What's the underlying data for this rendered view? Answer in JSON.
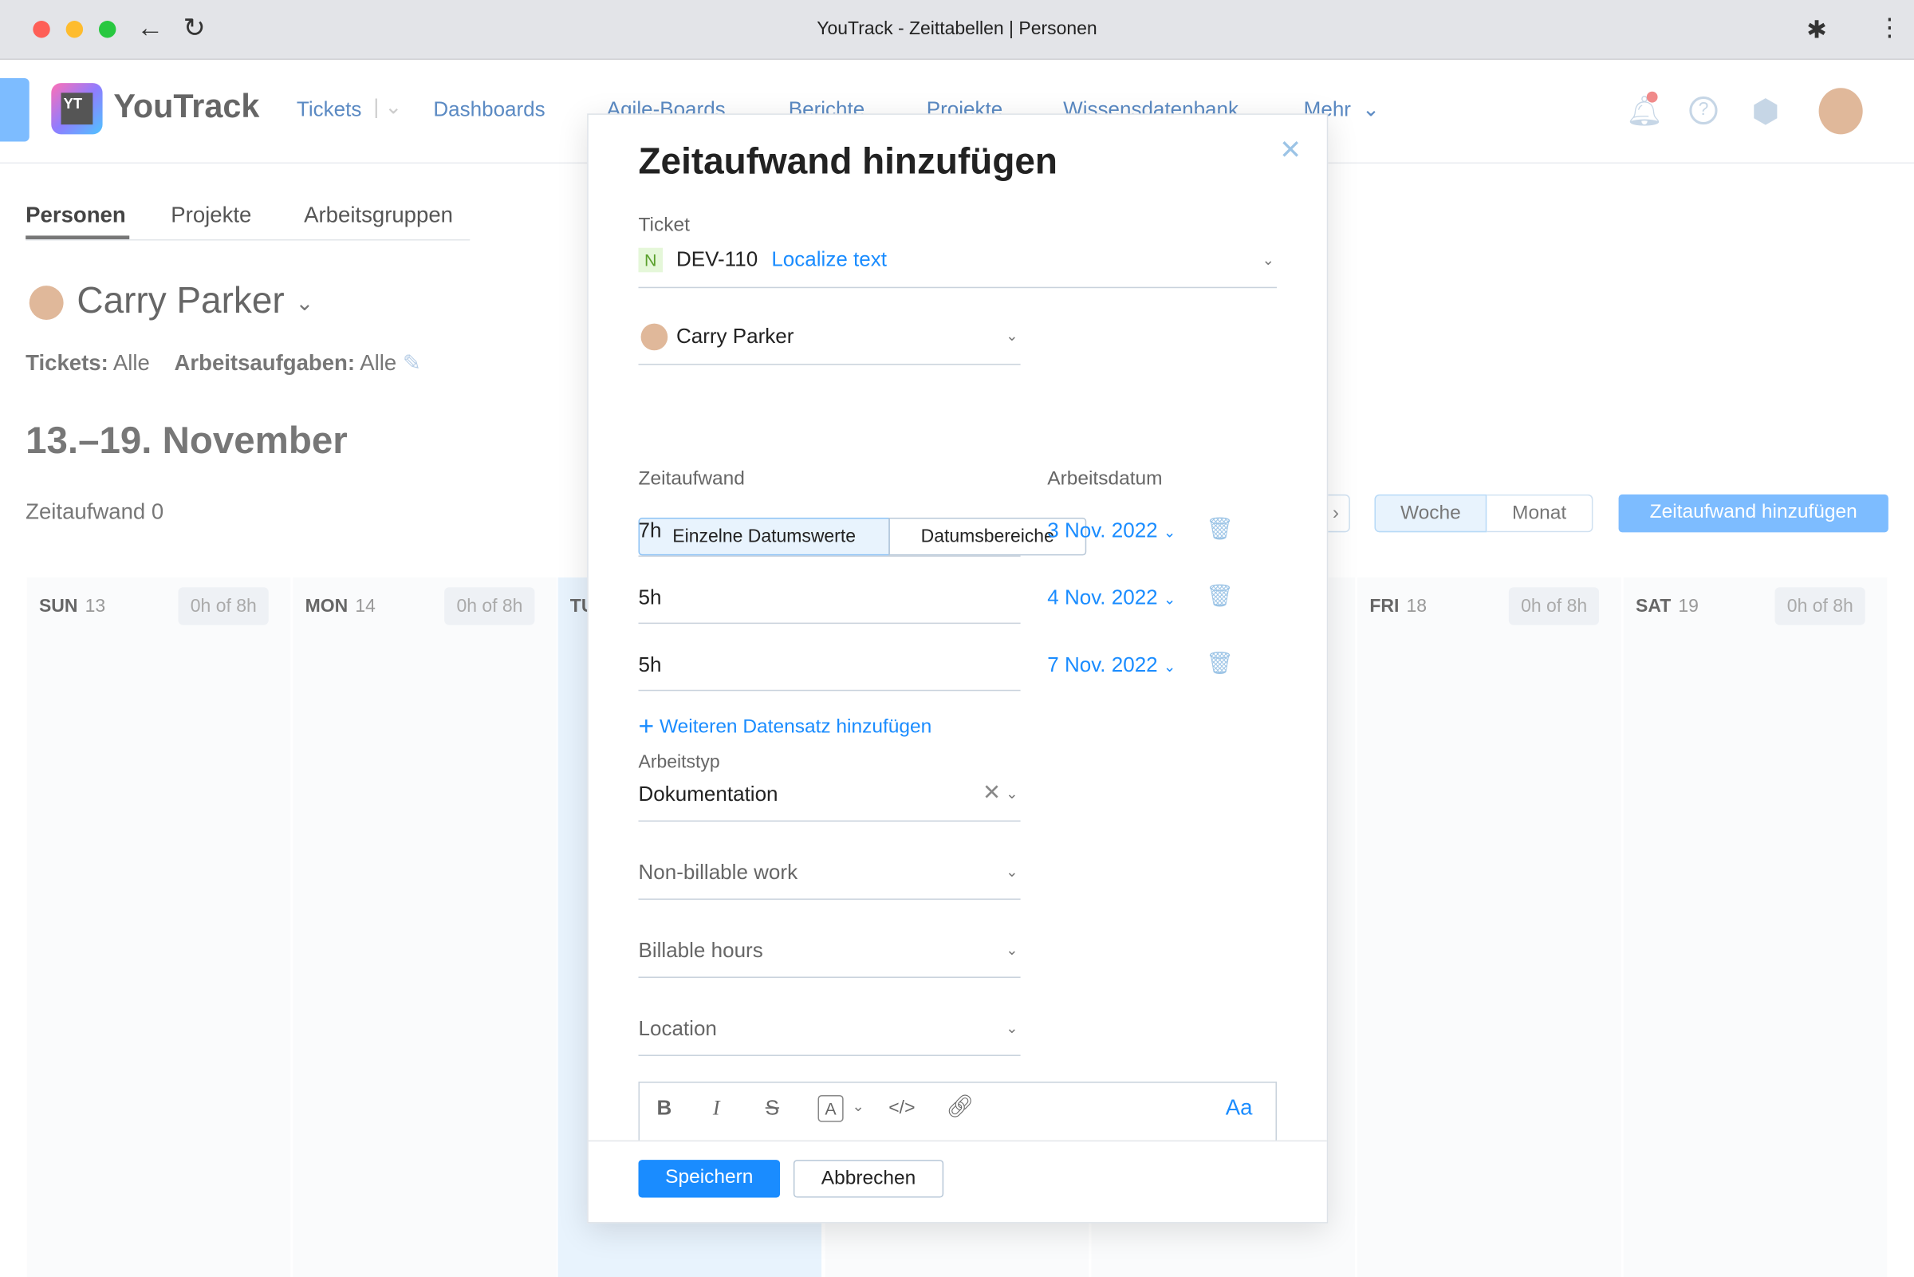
{
  "window": {
    "title": "YouTrack - Zeittabellen | Personen"
  },
  "nav": {
    "brand": "YouTrack",
    "logo_text": "YT",
    "items": [
      "Tickets",
      "Dashboards",
      "Agile-Boards",
      "Berichte",
      "Projekte",
      "Wissensdatenbank",
      "Mehr"
    ]
  },
  "tabs": [
    "Personen",
    "Projekte",
    "Arbeitsgruppen"
  ],
  "person": {
    "name": "Carry Parker",
    "filter_tickets_label": "Tickets:",
    "filter_tickets_value": "Alle",
    "filter_tasks_label": "Arbeitsaufgaben:",
    "filter_tasks_value": "Alle"
  },
  "week": {
    "title": "13.–19. November",
    "total": "Zeitaufwand 0",
    "view_week": "Woche",
    "view_month": "Monat",
    "add_button": "Zeitaufwand hinzufügen"
  },
  "days": [
    {
      "name": "SUN",
      "num": "13",
      "hours": "0h of 8h"
    },
    {
      "name": "MON",
      "num": "14",
      "hours": "0h of 8h"
    },
    {
      "name": "TU",
      "num": "",
      "hours": ""
    },
    {
      "name": "",
      "num": "",
      "hours": ""
    },
    {
      "name": "",
      "num": "",
      "hours": ""
    },
    {
      "name": "FRI",
      "num": "18",
      "hours": "0h of 8h"
    },
    {
      "name": "SAT",
      "num": "19",
      "hours": "0h of 8h"
    }
  ],
  "modal": {
    "title": "Zeitaufwand hinzufügen",
    "ticket_label": "Ticket",
    "ticket_badge": "N",
    "ticket_id": "DEV-110",
    "ticket_summary": "Localize text",
    "user": "Carry Parker",
    "mode_single": "Einzelne Datumswerte",
    "mode_range": "Datumsbereiche",
    "col_time": "Zeitaufwand",
    "col_date": "Arbeitsdatum",
    "entries": [
      {
        "time": "7h",
        "date": "3 Nov. 2022"
      },
      {
        "time": "5h",
        "date": "4 Nov. 2022"
      },
      {
        "time": "5h",
        "date": "7 Nov. 2022"
      }
    ],
    "add_record": "Weiteren Datensatz hinzufügen",
    "worktype_label": "Arbeitstyp",
    "worktype_value": "Dokumentation",
    "selects": [
      "Non-billable work",
      "Billable hours",
      "Location"
    ],
    "toolbar": {
      "bold": "B",
      "italic": "I",
      "strike": "S",
      "color": "A",
      "code": "</>",
      "format": "Aa"
    },
    "save": "Speichern",
    "cancel": "Abbrechen"
  },
  "colors": {
    "accent": "#1a8cff",
    "highlight": "#e8f3fd"
  }
}
